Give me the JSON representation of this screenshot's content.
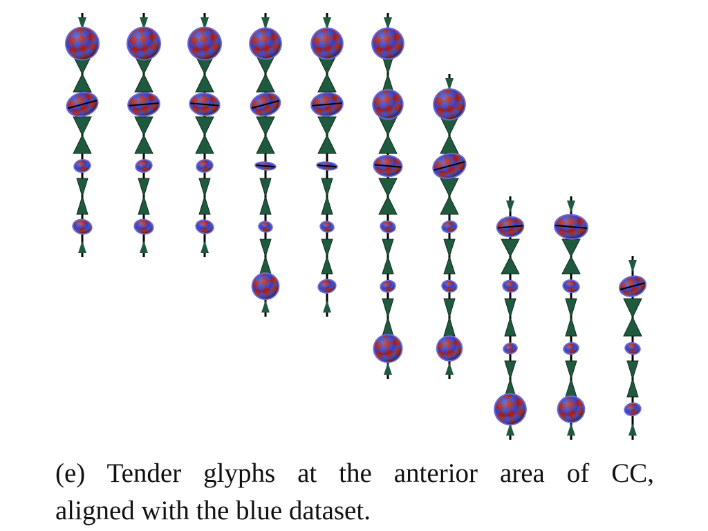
{
  "caption": {
    "line1": "(e) Tender glyphs at the anterior area of CC,",
    "line2": "aligned with the blue dataset."
  },
  "colors": {
    "red": "#9b1c24",
    "blue": "#3b3bb8",
    "glyph_edge": "#6a6ad8",
    "connector_green": "#1f5a3e",
    "stalk": "#000000",
    "background": "#ffffff"
  },
  "glyph_grid": {
    "columns": [
      {
        "glyphs": [
          {
            "kind": "sphere",
            "size": 1.0
          },
          {
            "kind": "disk",
            "size": 0.95
          },
          {
            "kind": "small",
            "size": 0.55
          },
          {
            "kind": "small",
            "size": 0.65
          }
        ]
      },
      {
        "glyphs": [
          {
            "kind": "sphere",
            "size": 1.0
          },
          {
            "kind": "disk",
            "size": 0.95
          },
          {
            "kind": "small",
            "size": 0.55
          },
          {
            "kind": "small",
            "size": 0.65
          }
        ]
      },
      {
        "glyphs": [
          {
            "kind": "sphere",
            "size": 1.0
          },
          {
            "kind": "disk",
            "size": 0.9
          },
          {
            "kind": "small",
            "size": 0.55
          },
          {
            "kind": "small",
            "size": 0.6
          }
        ]
      },
      {
        "glyphs": [
          {
            "kind": "sphere",
            "size": 0.95
          },
          {
            "kind": "disk",
            "size": 0.9
          },
          {
            "kind": "flat",
            "size": 0.6
          },
          {
            "kind": "small",
            "size": 0.45
          },
          {
            "kind": "sphere",
            "size": 0.8
          }
        ]
      },
      {
        "glyphs": [
          {
            "kind": "sphere",
            "size": 0.95
          },
          {
            "kind": "disk",
            "size": 0.95
          },
          {
            "kind": "flat",
            "size": 0.6
          },
          {
            "kind": "small",
            "size": 0.45
          },
          {
            "kind": "small",
            "size": 0.6
          }
        ]
      },
      {
        "glyphs": [
          {
            "kind": "sphere",
            "size": 0.95
          },
          {
            "kind": "sphere",
            "size": 0.9
          },
          {
            "kind": "disk",
            "size": 0.85
          },
          {
            "kind": "small",
            "size": 0.5
          },
          {
            "kind": "small",
            "size": 0.5
          },
          {
            "kind": "sphere",
            "size": 0.85
          }
        ]
      },
      {
        "glyphs": [
          {
            "kind": "sphere",
            "size": 0.95
          },
          {
            "kind": "disk",
            "size": 1.0
          },
          {
            "kind": "small",
            "size": 0.5
          },
          {
            "kind": "small",
            "size": 0.5
          },
          {
            "kind": "sphere",
            "size": 0.75
          }
        ]
      },
      {
        "glyphs": [
          {
            "kind": "disk",
            "size": 0.8
          },
          {
            "kind": "small",
            "size": 0.5
          },
          {
            "kind": "small",
            "size": 0.45
          },
          {
            "kind": "sphere",
            "size": 0.95
          }
        ]
      },
      {
        "glyphs": [
          {
            "kind": "disk",
            "size": 1.0
          },
          {
            "kind": "small",
            "size": 0.55
          },
          {
            "kind": "small",
            "size": 0.5
          },
          {
            "kind": "sphere",
            "size": 0.8
          }
        ]
      },
      {
        "glyphs": [
          {
            "kind": "disk",
            "size": 0.8
          },
          {
            "kind": "small",
            "size": 0.5
          },
          {
            "kind": "small",
            "size": 0.55
          }
        ]
      }
    ]
  }
}
